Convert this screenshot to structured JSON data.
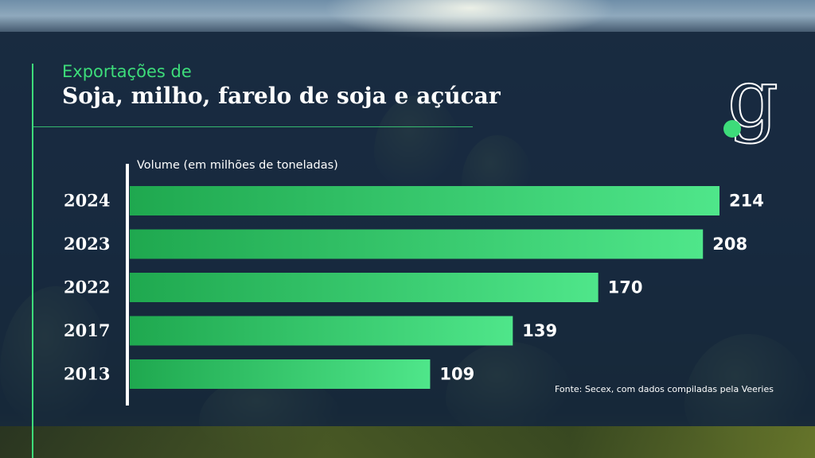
{
  "subtitle": "Exportações de",
  "title": "Soja, milho, farelo de soja e açúcar",
  "logo_text": "g",
  "source": "Fonte: Secex, com dados compiladas pela Veeries",
  "colors": {
    "accent": "#3ddc7a",
    "bar_start": "#1fa84f",
    "bar_end": "#4fe68a",
    "panel": "#16283e"
  },
  "chart_data": {
    "type": "bar",
    "orientation": "horizontal",
    "ylabel": "Volume (em milhões de toneladas)",
    "categories": [
      "2024",
      "2023",
      "2022",
      "2017",
      "2013"
    ],
    "values": [
      214,
      208,
      170,
      139,
      109
    ],
    "data_labels": [
      "214",
      "208",
      "170",
      "139",
      "109"
    ],
    "xlim": [
      0,
      214
    ],
    "grid": false,
    "legend": "none"
  }
}
